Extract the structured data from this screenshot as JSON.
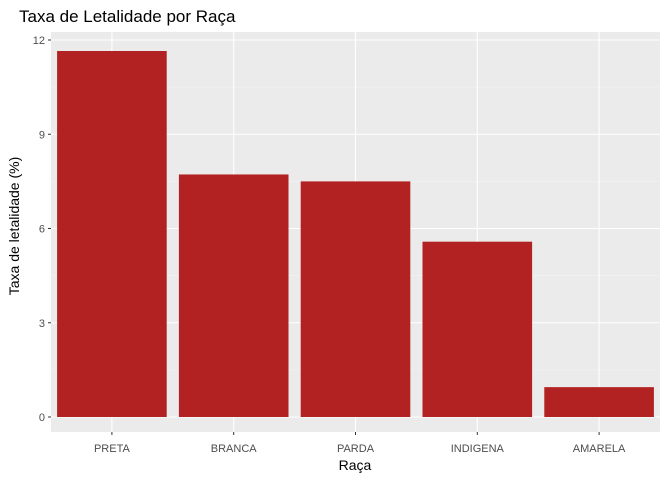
{
  "chart_data": {
    "type": "bar",
    "title": "Taxa de Letalidade por Raça",
    "xlabel": "Raça",
    "ylabel": "Taxa de letalidade (%)",
    "categories": [
      "PRETA",
      "BRANCA",
      "PARDA",
      "INDIGENA",
      "AMARELA"
    ],
    "values": [
      11.65,
      7.72,
      7.5,
      5.58,
      0.95
    ],
    "ylim": [
      0,
      12.2
    ],
    "yticks": [
      0,
      3,
      6,
      9,
      12
    ],
    "grid": true,
    "legend": "none",
    "colors": {
      "bar": "#b22222",
      "panel_background": "#ebebeb",
      "grid_major": "#ffffff",
      "grid_minor": "#f5f5f5",
      "tick": "#333333"
    }
  }
}
